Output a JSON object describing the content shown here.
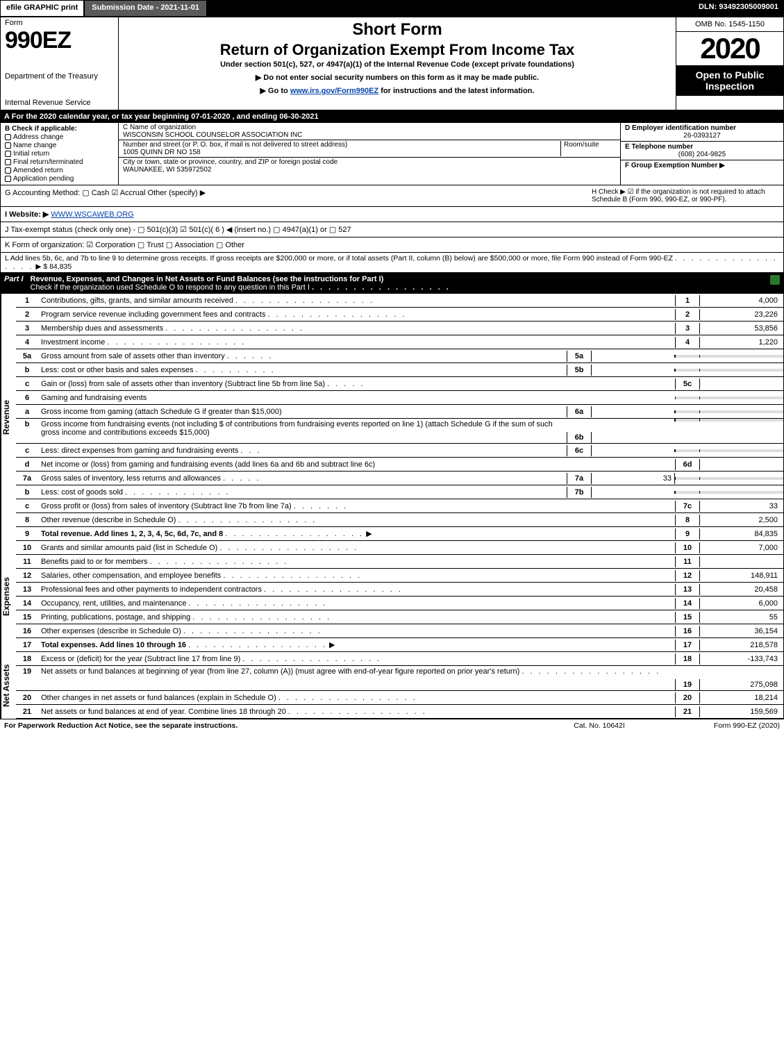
{
  "topbar": {
    "efile": "efile GRAPHIC print",
    "subdate": "Submission Date - 2021-11-01",
    "dln": "DLN: 93492305009001"
  },
  "header": {
    "form_word": "Form",
    "form_num": "990EZ",
    "dept1": "Department of the Treasury",
    "dept2": "Internal Revenue Service",
    "short_form": "Short Form",
    "ret_title": "Return of Organization Exempt From Income Tax",
    "sub1": "Under section 501(c), 527, or 4947(a)(1) of the Internal Revenue Code (except private foundations)",
    "arrow1": "▶ Do not enter social security numbers on this form as it may be made public.",
    "arrow2_pre": "▶ Go to ",
    "arrow2_link": "www.irs.gov/Form990EZ",
    "arrow2_post": " for instructions and the latest information.",
    "omb": "OMB No. 1545-1150",
    "year": "2020",
    "open_public": "Open to Public Inspection"
  },
  "period": {
    "a_label": "A",
    "text": " For the 2020 calendar year, or tax year beginning 07-01-2020 , and ending 06-30-2021"
  },
  "box_b": {
    "head": "B  Check if applicable:",
    "items": [
      "Address change",
      "Name change",
      "Initial return",
      "Final return/terminated",
      "Amended return",
      "Application pending"
    ]
  },
  "box_c": {
    "c_label": "C Name of organization",
    "c_name": "WISCONSIN SCHOOL COUNSELOR ASSOCIATION INC",
    "street_label": "Number and street (or P. O. box, if mail is not delivered to street address)",
    "street": "1005 QUINN DR NO 158",
    "room_label": "Room/suite",
    "city_label": "City or town, state or province, country, and ZIP or foreign postal code",
    "city": "WAUNAKEE, WI  535972502"
  },
  "box_d": {
    "d_label": "D Employer identification number",
    "ein": "26-0393127",
    "e_label": "E Telephone number",
    "phone": "(608) 204-9825",
    "f_label": "F Group Exemption Number   ▶"
  },
  "row_g": {
    "left": "G Accounting Method:   ▢ Cash   ☑ Accrual   Other (specify) ▶",
    "right_h": "H  Check ▶ ☑ if the organization is not required to attach Schedule B (Form 990, 990-EZ, or 990-PF)."
  },
  "row_i": {
    "label": "I Website: ▶",
    "value": "WWW.WSCAWEB.ORG"
  },
  "row_j": "J Tax-exempt status (check only one) - ▢ 501(c)(3)  ☑ 501(c)( 6 ) ◀ (insert no.)  ▢ 4947(a)(1) or  ▢ 527",
  "row_k": "K Form of organization:   ☑ Corporation   ▢ Trust   ▢ Association   ▢ Other",
  "row_l": {
    "text": "L Add lines 5b, 6c, and 7b to line 9 to determine gross receipts. If gross receipts are $200,000 or more, or if total assets (Part II, column (B) below) are $500,000 or more, file Form 990 instead of Form 990-EZ",
    "amount": "▶ $ 84,835"
  },
  "part1": {
    "num": "Part I",
    "title": "Revenue, Expenses, and Changes in Net Assets or Fund Balances (see the instructions for Part I)",
    "sub": "Check if the organization used Schedule O to respond to any question in this Part I"
  },
  "sections": {
    "revenue": "Revenue",
    "expenses": "Expenses",
    "netassets": "Net Assets"
  },
  "lines": {
    "l1": {
      "n": "1",
      "d": "Contributions, gifts, grants, and similar amounts received",
      "rn": "1",
      "rv": "4,000"
    },
    "l2": {
      "n": "2",
      "d": "Program service revenue including government fees and contracts",
      "rn": "2",
      "rv": "23,226"
    },
    "l3": {
      "n": "3",
      "d": "Membership dues and assessments",
      "rn": "3",
      "rv": "53,856"
    },
    "l4": {
      "n": "4",
      "d": "Investment income",
      "rn": "4",
      "rv": "1,220"
    },
    "l5a": {
      "n": "5a",
      "d": "Gross amount from sale of assets other than inventory",
      "mn": "5a",
      "mv": ""
    },
    "l5b": {
      "n": "b",
      "d": "Less: cost or other basis and sales expenses",
      "mn": "5b",
      "mv": ""
    },
    "l5c": {
      "n": "c",
      "d": "Gain or (loss) from sale of assets other than inventory (Subtract line 5b from line 5a)",
      "rn": "5c",
      "rv": ""
    },
    "l6": {
      "n": "6",
      "d": "Gaming and fundraising events"
    },
    "l6a": {
      "n": "a",
      "d": "Gross income from gaming (attach Schedule G if greater than $15,000)",
      "mn": "6a",
      "mv": ""
    },
    "l6b": {
      "n": "b",
      "d": "Gross income from fundraising events (not including $                  of contributions from fundraising events reported on line 1) (attach Schedule G if the sum of such gross income and contributions exceeds $15,000)",
      "mn": "6b",
      "mv": ""
    },
    "l6c": {
      "n": "c",
      "d": "Less: direct expenses from gaming and fundraising events",
      "mn": "6c",
      "mv": ""
    },
    "l6d": {
      "n": "d",
      "d": "Net income or (loss) from gaming and fundraising events (add lines 6a and 6b and subtract line 6c)",
      "rn": "6d",
      "rv": ""
    },
    "l7a": {
      "n": "7a",
      "d": "Gross sales of inventory, less returns and allowances",
      "mn": "7a",
      "mv": "33"
    },
    "l7b": {
      "n": "b",
      "d": "Less: cost of goods sold",
      "mn": "7b",
      "mv": ""
    },
    "l7c": {
      "n": "c",
      "d": "Gross profit or (loss) from sales of inventory (Subtract line 7b from line 7a)",
      "rn": "7c",
      "rv": "33"
    },
    "l8": {
      "n": "8",
      "d": "Other revenue (describe in Schedule O)",
      "rn": "8",
      "rv": "2,500"
    },
    "l9": {
      "n": "9",
      "d": "Total revenue. Add lines 1, 2, 3, 4, 5c, 6d, 7c, and 8",
      "rn": "9",
      "rv": "84,835"
    },
    "l10": {
      "n": "10",
      "d": "Grants and similar amounts paid (list in Schedule O)",
      "rn": "10",
      "rv": "7,000"
    },
    "l11": {
      "n": "11",
      "d": "Benefits paid to or for members",
      "rn": "11",
      "rv": ""
    },
    "l12": {
      "n": "12",
      "d": "Salaries, other compensation, and employee benefits",
      "rn": "12",
      "rv": "148,911"
    },
    "l13": {
      "n": "13",
      "d": "Professional fees and other payments to independent contractors",
      "rn": "13",
      "rv": "20,458"
    },
    "l14": {
      "n": "14",
      "d": "Occupancy, rent, utilities, and maintenance",
      "rn": "14",
      "rv": "6,000"
    },
    "l15": {
      "n": "15",
      "d": "Printing, publications, postage, and shipping",
      "rn": "15",
      "rv": "55"
    },
    "l16": {
      "n": "16",
      "d": "Other expenses (describe in Schedule O)",
      "rn": "16",
      "rv": "36,154"
    },
    "l17": {
      "n": "17",
      "d": "Total expenses. Add lines 10 through 16",
      "rn": "17",
      "rv": "218,578"
    },
    "l18": {
      "n": "18",
      "d": "Excess or (deficit) for the year (Subtract line 17 from line 9)",
      "rn": "18",
      "rv": "-133,743"
    },
    "l19": {
      "n": "19",
      "d": "Net assets or fund balances at beginning of year (from line 27, column (A)) (must agree with end-of-year figure reported on prior year's return)",
      "rn": "19",
      "rv": "275,098"
    },
    "l20": {
      "n": "20",
      "d": "Other changes in net assets or fund balances (explain in Schedule O)",
      "rn": "20",
      "rv": "18,214"
    },
    "l21": {
      "n": "21",
      "d": "Net assets or fund balances at end of year. Combine lines 18 through 20",
      "rn": "21",
      "rv": "159,569"
    }
  },
  "footer": {
    "left": "For Paperwork Reduction Act Notice, see the separate instructions.",
    "mid": "Cat. No. 10642I",
    "right": "Form 990-EZ (2020)"
  },
  "dots": ". . . . . . . . . . . . . . . . ."
}
